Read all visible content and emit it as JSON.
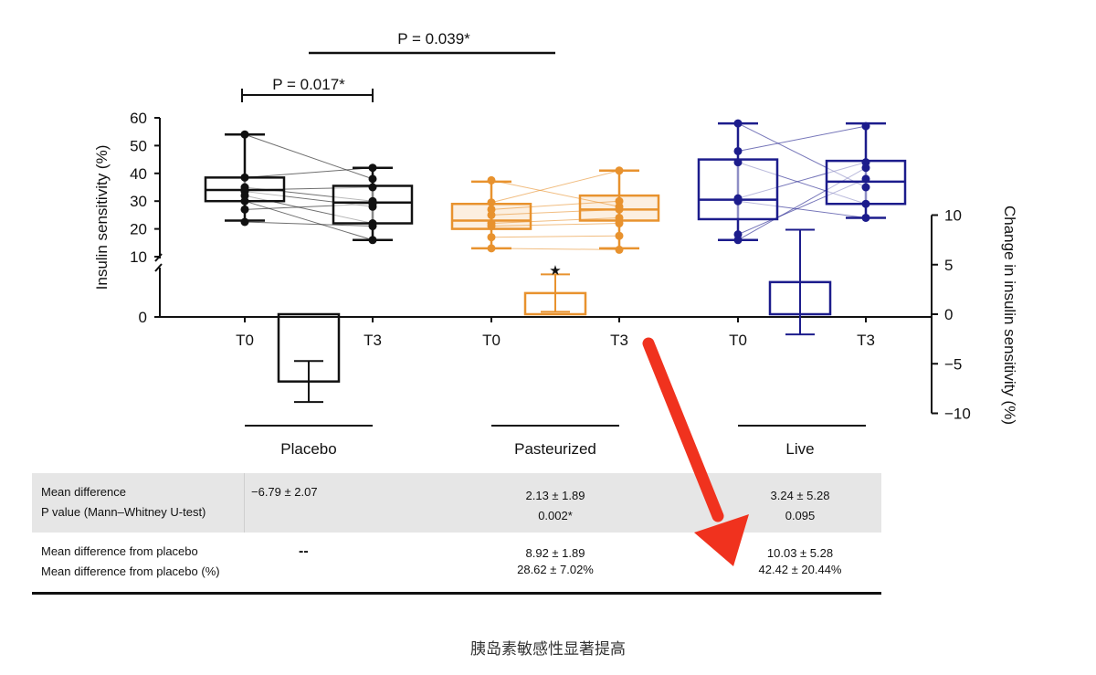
{
  "chart_data": {
    "type": "box",
    "left_axis": {
      "label": "Insulin sensitivity (%)",
      "ticks": [
        "60",
        "50",
        "40",
        "30",
        "20",
        "10",
        "0"
      ],
      "range": [
        10,
        60
      ]
    },
    "right_axis": {
      "label": "Change in insulin sensitivity (%)",
      "ticks": [
        "10",
        "5",
        "0",
        "−5",
        "−10"
      ],
      "range": [
        -10,
        10
      ]
    },
    "x_tick_labels": [
      "T0",
      "T3",
      "T0",
      "T3",
      "T0",
      "T3"
    ],
    "groups": [
      {
        "name": "Placebo",
        "color": "#111111",
        "T0": {
          "min": 23,
          "q1": 30,
          "median": 34,
          "q3": 38.5,
          "max": 54,
          "points": [
            54,
            38.5,
            35,
            34,
            33.5,
            32,
            30,
            27,
            22.5
          ]
        },
        "T3": {
          "min": 16,
          "q1": 22,
          "median": 29.5,
          "q3": 35.5,
          "max": 42,
          "points": [
            38,
            42,
            30,
            35,
            28,
            22,
            16,
            29,
            21
          ]
        },
        "change": {
          "mean": -6.79,
          "sem": 2.07
        }
      },
      {
        "name": "Pasteurized",
        "color": "#e8922e",
        "T0": {
          "min": 13,
          "q1": 20,
          "median": 23,
          "q3": 29,
          "max": 37,
          "points": [
            37.5,
            29.5,
            27,
            25,
            22,
            21,
            17,
            13
          ]
        },
        "T3": {
          "min": 13,
          "q1": 23,
          "median": 27,
          "q3": 32,
          "max": 41,
          "points": [
            28,
            41,
            30,
            27,
            24,
            22,
            17.5,
            12.5
          ]
        },
        "change": {
          "mean": 2.13,
          "sem": 1.89
        }
      },
      {
        "name": "Live",
        "color": "#1c1c8c",
        "T0": {
          "min": 16,
          "q1": 23.5,
          "median": 30.5,
          "q3": 45,
          "max": 58,
          "points": [
            58,
            48,
            44,
            31,
            30,
            18,
            16
          ]
        },
        "T3": {
          "min": 24,
          "q1": 29,
          "median": 37,
          "q3": 44.5,
          "max": 58,
          "points": [
            35,
            57,
            29,
            44,
            24,
            38,
            42
          ]
        },
        "change": {
          "mean": 3.24,
          "sem": 5.28
        }
      }
    ],
    "annotations": {
      "p_placebo": "P = 0.017*",
      "p_between": "P = 0.039*",
      "star": "★"
    }
  },
  "table": {
    "row1_label_1": "Mean difference",
    "row1_label_2": "P value (Mann–Whitney U-test)",
    "row1": [
      "−6.79 ± 2.07",
      "2.13 ± 1.89",
      "0.002*",
      "3.24 ± 5.28",
      "0.095"
    ],
    "row2_label_1": "Mean difference from placebo",
    "row2_label_2": "Mean difference from placebo (%)",
    "row2": [
      "--",
      "8.92 ± 1.89",
      "28.62 ± 7.02%",
      "10.03 ± 5.28",
      "42.42 ± 20.44%"
    ]
  },
  "caption": "胰岛素敏感性显著提高",
  "colors": {
    "arrow": "#f0321e",
    "table_bg": "#e6e6e6"
  }
}
